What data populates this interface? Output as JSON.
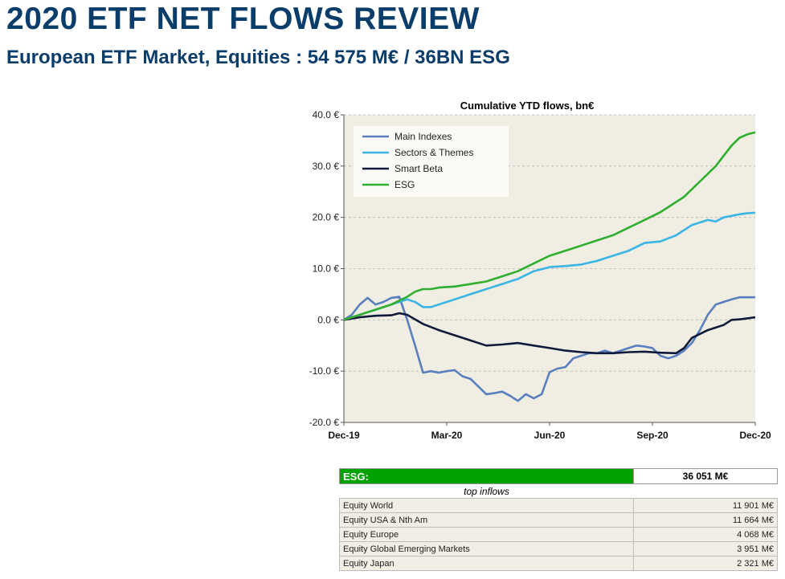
{
  "header": {
    "title": "2020 ETF NET FLOWS REVIEW",
    "subtitle": "European ETF Market, Equities : 54 575 M€ / 36BN ESG"
  },
  "chart_data": {
    "type": "line",
    "title": "Cumulative YTD flows, bn€",
    "xlabel": "",
    "ylabel": "",
    "x_ticks": [
      "Dec-19",
      "Mar-20",
      "Jun-20",
      "Sep-20",
      "Dec-20"
    ],
    "xlim": [
      0,
      52
    ],
    "ylim": [
      -20,
      40
    ],
    "y_ticks": [
      "-20.0 €",
      "-10.0 €",
      "0.0 €",
      "10.0 €",
      "20.0 €",
      "30.0 €",
      "40.0 €"
    ],
    "legend_position": "top-left",
    "series": [
      {
        "name": "Main Indexes",
        "color": "#5a7fbf",
        "x": [
          0,
          1,
          2,
          3,
          4,
          5,
          6,
          7,
          8,
          9,
          10,
          11,
          12,
          13,
          14,
          15,
          16,
          17,
          18,
          19,
          20,
          21,
          22,
          23,
          24,
          25,
          26,
          27,
          28,
          29,
          30,
          31,
          32,
          33,
          34,
          35,
          36,
          37,
          38,
          39,
          40,
          41,
          42,
          43,
          44,
          45,
          46,
          47,
          48,
          49,
          50,
          51,
          52
        ],
        "values": [
          0,
          1,
          3,
          4.3,
          3,
          3.5,
          4.3,
          4.5,
          0,
          -5,
          -10.3,
          -10,
          -10.3,
          -10,
          -9.8,
          -11,
          -11.5,
          -13,
          -14.5,
          -14.3,
          -14,
          -14.8,
          -15.8,
          -14.5,
          -15.3,
          -14.5,
          -10.2,
          -9.5,
          -9.2,
          -7.5,
          -7,
          -6.5,
          -6.5,
          -6,
          -6.5,
          -6,
          -5.5,
          -5,
          -5.2,
          -5.5,
          -7,
          -7.5,
          -7,
          -6,
          -4.5,
          -2,
          1,
          3,
          3.5,
          4,
          4.4,
          4.4,
          4.4
        ]
      },
      {
        "name": "Sectors & Themes",
        "color": "#3ab5e6",
        "x": [
          0,
          2,
          4,
          6,
          8,
          9,
          10,
          11,
          12,
          13,
          14,
          16,
          18,
          20,
          22,
          24,
          26,
          28,
          30,
          32,
          34,
          36,
          38,
          40,
          42,
          44,
          46,
          47,
          48,
          49,
          50,
          51,
          52
        ],
        "values": [
          0,
          1,
          2,
          3,
          4,
          3.5,
          2.5,
          2.5,
          3,
          3.5,
          4,
          5,
          6,
          7,
          8,
          9.5,
          10.3,
          10.5,
          10.8,
          11.5,
          12.5,
          13.5,
          15,
          15.3,
          16.5,
          18.5,
          19.5,
          19.2,
          20,
          20.3,
          20.6,
          20.8,
          20.9
        ]
      },
      {
        "name": "Smart Beta",
        "color": "#101a3a",
        "x": [
          0,
          2,
          4,
          6,
          7,
          8,
          10,
          12,
          14,
          16,
          18,
          20,
          22,
          24,
          26,
          28,
          30,
          32,
          34,
          36,
          38,
          40,
          42,
          43,
          44,
          46,
          48,
          49,
          50,
          51,
          52
        ],
        "values": [
          0,
          0.5,
          0.8,
          0.9,
          1.3,
          1,
          -0.8,
          -2,
          -3,
          -4,
          -5,
          -4.8,
          -4.5,
          -5,
          -5.5,
          -6,
          -6.3,
          -6.5,
          -6.5,
          -6.3,
          -6.2,
          -6.4,
          -6.5,
          -5.5,
          -3.5,
          -2,
          -1,
          0,
          0.1,
          0.3,
          0.5
        ]
      },
      {
        "name": "ESG",
        "color": "#2fae2f",
        "x": [
          0,
          2,
          4,
          6,
          8,
          9,
          10,
          11,
          12,
          14,
          16,
          18,
          20,
          22,
          24,
          26,
          28,
          30,
          32,
          34,
          36,
          38,
          40,
          42,
          43,
          44,
          45,
          46,
          47,
          48,
          49,
          50,
          51,
          52
        ],
        "values": [
          0,
          1,
          2,
          3,
          4.5,
          5.5,
          6,
          6,
          6.3,
          6.5,
          7,
          7.5,
          8.5,
          9.5,
          11,
          12.5,
          13.5,
          14.5,
          15.5,
          16.5,
          18,
          19.5,
          21,
          23,
          24,
          25.5,
          27,
          28.5,
          30,
          32,
          34,
          35.5,
          36.2,
          36.6
        ]
      }
    ]
  },
  "esg_table": {
    "label": "ESG:",
    "total": "36 051 M€",
    "subheader": "top inflows",
    "rows": [
      {
        "name": "Equity World",
        "value": "11 901 M€"
      },
      {
        "name": "Equity USA & Nth Am",
        "value": "11 664 M€"
      },
      {
        "name": "Equity Europe",
        "value": "4 068 M€"
      },
      {
        "name": "Equity Global Emerging Markets",
        "value": "3 951 M€"
      },
      {
        "name": "Equity Japan",
        "value": "2 321 M€"
      }
    ]
  },
  "colors": {
    "title": "#0b3d6b",
    "plot_background": "#f0ede2",
    "esg_bar": "#00a200"
  }
}
